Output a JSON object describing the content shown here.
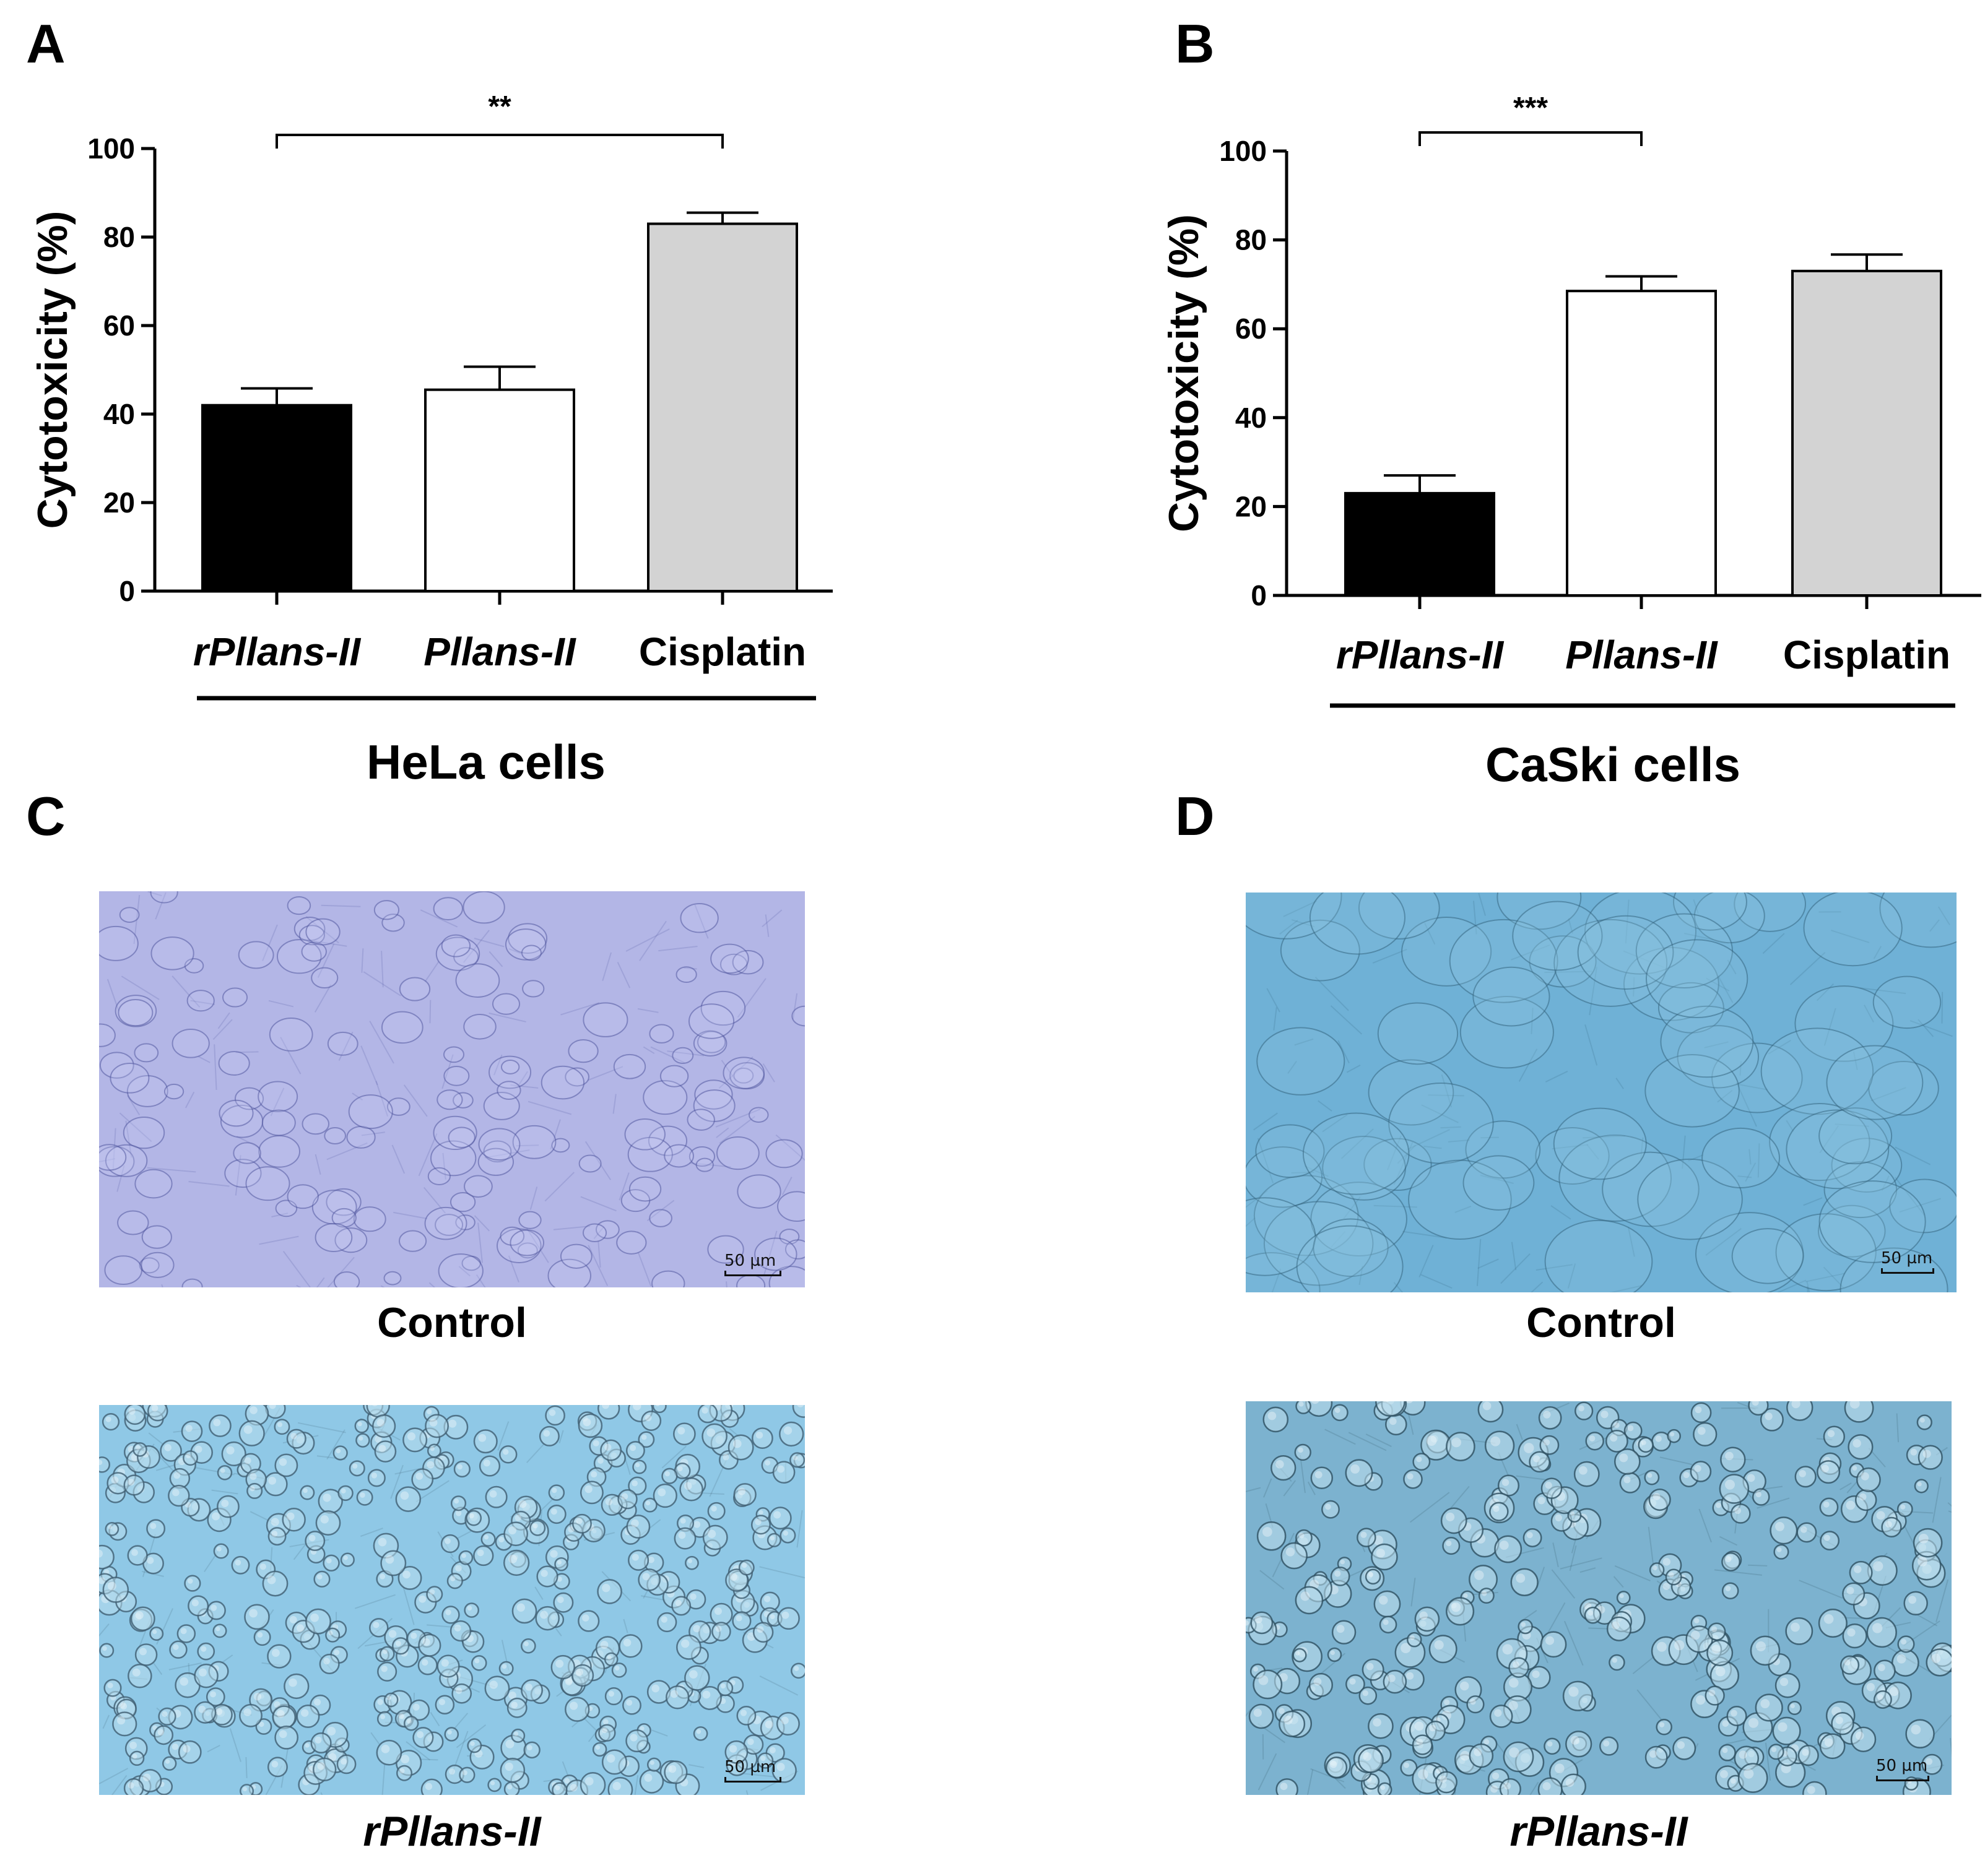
{
  "panels": {
    "a": "A",
    "b": "B",
    "c": "C",
    "d": "D"
  },
  "chart_data": [
    {
      "type": "bar",
      "panel": "A",
      "title": "HeLa cells",
      "xlabel": "HeLa cells",
      "ylabel": "Cytotoxicity (%)",
      "ylim": [
        0,
        100
      ],
      "yticks": [
        0,
        20,
        40,
        60,
        80,
        100
      ],
      "categories": [
        "rPllans-II",
        "Pllans-II",
        "Cisplatin"
      ],
      "italic_categories": [
        true,
        true,
        false
      ],
      "values": [
        42,
        45.5,
        83
      ],
      "errors": [
        3.8,
        5.2,
        2.5
      ],
      "bar_colors": [
        "#000000",
        "#ffffff",
        "#d3d3d3"
      ],
      "significance": {
        "from": 0,
        "to": 2,
        "label": "**"
      },
      "grid": false,
      "legend": "none"
    },
    {
      "type": "bar",
      "panel": "B",
      "title": "CaSki cells",
      "xlabel": "CaSki cells",
      "ylabel": "Cytotoxicity (%)",
      "ylim": [
        0,
        100
      ],
      "yticks": [
        0,
        20,
        40,
        60,
        80,
        100
      ],
      "categories": [
        "rPllans-II",
        "Pllans-II",
        "Cisplatin"
      ],
      "italic_categories": [
        true,
        true,
        false
      ],
      "values": [
        23,
        68.5,
        73
      ],
      "errors": [
        4,
        3.3,
        3.7
      ],
      "bar_colors": [
        "#000000",
        "#ffffff",
        "#d3d3d3"
      ],
      "significance": {
        "from": 0,
        "to": 1,
        "label": "***"
      },
      "grid": false,
      "legend": "none"
    }
  ],
  "images": {
    "c_top": {
      "caption": "Control",
      "scale": "50 µm",
      "tint": "#b3b6e6"
    },
    "c_bottom": {
      "caption": "rPllans-II",
      "scale": "50 µm",
      "tint": "#8fc8e6"
    },
    "d_top": {
      "caption": "Control",
      "scale": "50 µm",
      "tint": "#6fb1d6"
    },
    "d_bottom": {
      "caption": "rPllans-II",
      "scale": "50 µm",
      "tint": "#7cb2cf"
    }
  }
}
